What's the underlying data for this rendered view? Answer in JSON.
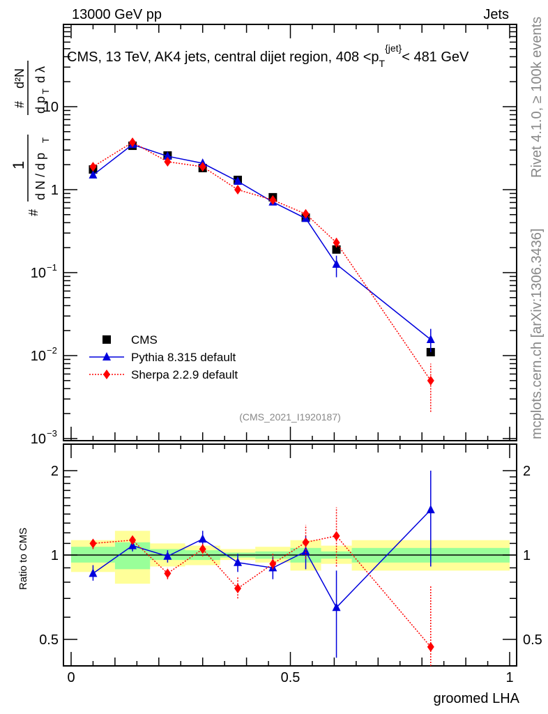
{
  "header": {
    "left": "13000 GeV pp",
    "right": "Jets",
    "rivet": "Rivet 4.1.0, ≥ 100k events",
    "mcplots": "mcplots.cern.ch [arXiv:1306.3436]",
    "analysis": "(CMS_2021_I1920187)"
  },
  "chart_data": [
    {
      "type": "line",
      "panel": "main",
      "title": "CMS, 13 TeV, AK4 jets, central dijet region, 408 <p_T^{jet}< 481 GeV",
      "title_parts": [
        "CMS, 13 TeV, AK4 jets, central dijet region, 408 <p",
        "T",
        "{jet}",
        "< 481 GeV"
      ],
      "ylabel_parts": [
        "1",
        "d N / d p",
        "T",
        "#",
        "d²N",
        "d p",
        "T",
        "d λ",
        "#"
      ],
      "yscale": "log",
      "ylim": [
        0.001,
        40
      ],
      "xlim": [
        0,
        1
      ],
      "yticks": [
        {
          "v": 10,
          "l": "10"
        },
        {
          "v": 1,
          "l": "1"
        },
        {
          "v": 0.1,
          "l": "10",
          "e": "−1"
        },
        {
          "v": 0.01,
          "l": "10",
          "e": "−2"
        },
        {
          "v": 0.001,
          "l": "10",
          "e": "−3"
        }
      ],
      "x": [
        0.05,
        0.14,
        0.22,
        0.3,
        0.38,
        0.46,
        0.535,
        0.605,
        0.82
      ],
      "bin_edges": [
        0,
        0.1,
        0.18,
        0.26,
        0.34,
        0.42,
        0.5,
        0.57,
        0.64,
        1.0
      ],
      "legend_position": "bottom-left",
      "series": [
        {
          "name": "CMS",
          "color": "#000000",
          "marker": "square",
          "values": [
            1.75,
            3.38,
            2.58,
            1.82,
            1.31,
            0.81,
            0.46,
            0.19,
            0.011
          ]
        },
        {
          "name": "Pythia 8.315 default",
          "color": "#0000dd",
          "marker": "triangle",
          "values": [
            1.5,
            3.5,
            2.53,
            2.08,
            1.26,
            0.71,
            0.45,
            0.126,
            0.0156
          ],
          "err_lo": [
            1.42,
            3.4,
            2.45,
            2.0,
            1.18,
            0.67,
            0.41,
            0.088,
            0.011
          ],
          "err_hi": [
            1.58,
            3.6,
            2.6,
            2.16,
            1.35,
            0.75,
            0.49,
            0.16,
            0.021
          ]
        },
        {
          "name": "Sherpa 2.2.9 default",
          "color": "#ff0000",
          "marker": "diamond",
          "values": [
            1.89,
            3.72,
            2.17,
            1.89,
            1.0,
            0.75,
            0.51,
            0.23,
            0.005
          ],
          "err_lo": [
            1.82,
            3.6,
            2.1,
            1.82,
            0.93,
            0.7,
            0.48,
            0.2,
            0.0021
          ],
          "err_hi": [
            1.96,
            3.85,
            2.25,
            1.96,
            1.07,
            0.8,
            0.54,
            0.27,
            0.008
          ]
        }
      ]
    },
    {
      "type": "line",
      "panel": "ratio",
      "ylabel": "Ratio to CMS",
      "xlabel": "groomed LHA",
      "yscale": "log",
      "ylim": [
        0.37,
        2.5
      ],
      "yticks": [
        {
          "v": 2,
          "l": "2"
        },
        {
          "v": 1,
          "l": "1"
        },
        {
          "v": 0.5,
          "l": "0.5"
        }
      ],
      "xticks": [
        {
          "v": 0,
          "l": "0"
        },
        {
          "v": 0.5,
          "l": "0.5"
        },
        {
          "v": 1,
          "l": "1"
        }
      ],
      "band_total": [
        [
          0.87,
          1.13
        ],
        [
          0.79,
          1.22
        ],
        [
          0.91,
          1.1
        ],
        [
          0.92,
          1.08
        ],
        [
          0.96,
          1.05
        ],
        [
          0.94,
          1.07
        ],
        [
          0.88,
          1.13
        ],
        [
          0.93,
          1.08
        ],
        [
          0.88,
          1.13
        ]
      ],
      "band_stat": [
        [
          0.94,
          1.07
        ],
        [
          0.89,
          1.11
        ],
        [
          0.96,
          1.05
        ],
        [
          0.96,
          1.04
        ],
        [
          0.98,
          1.02
        ],
        [
          0.97,
          1.03
        ],
        [
          0.94,
          1.06
        ],
        [
          0.97,
          1.03
        ],
        [
          0.94,
          1.06
        ]
      ],
      "series": [
        {
          "name": "Pythia 8.315 default",
          "values": [
            0.86,
            1.08,
            0.99,
            1.14,
            0.94,
            0.9,
            1.03,
            0.65,
            1.45
          ],
          "err_lo": [
            0.81,
            1.03,
            0.94,
            1.07,
            0.87,
            0.82,
            0.89,
            0.43,
            0.91
          ],
          "err_hi": [
            0.92,
            1.12,
            1.04,
            1.22,
            1.01,
            0.99,
            1.17,
            0.88,
            2.0
          ]
        },
        {
          "name": "Sherpa 2.2.9 default",
          "values": [
            1.1,
            1.13,
            0.86,
            1.05,
            0.76,
            0.93,
            1.11,
            1.17,
            0.47
          ],
          "err_lo": [
            1.05,
            1.09,
            0.82,
            0.99,
            0.7,
            0.89,
            0.97,
            0.91,
            0.35
          ],
          "err_hi": [
            1.15,
            1.17,
            0.9,
            1.11,
            0.84,
            1.01,
            1.28,
            1.48,
            0.78
          ]
        }
      ]
    }
  ]
}
